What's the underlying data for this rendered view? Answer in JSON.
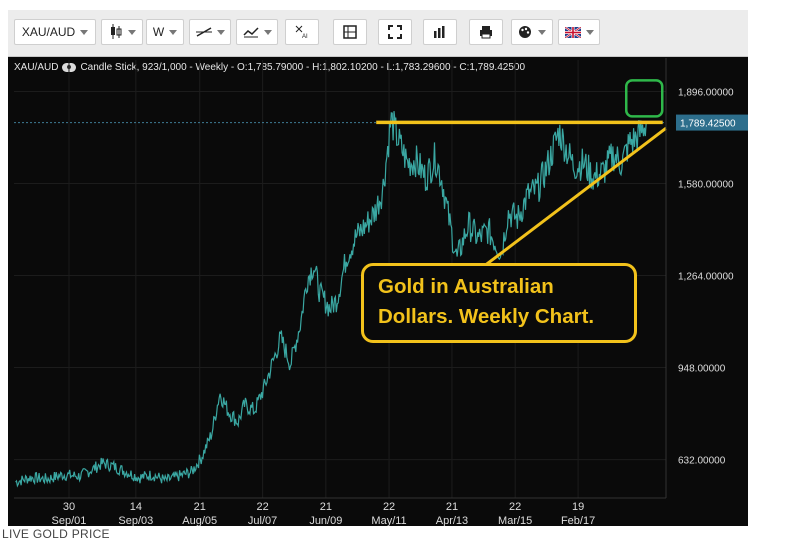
{
  "toolbar": {
    "symbol": "XAU/AUD",
    "interval": "W",
    "icons": [
      "candlestick-chart-icon",
      "draw-line-icon",
      "indicator-icon",
      "ai-tools-icon",
      "layout-icon",
      "fullscreen-icon",
      "bar-chart-icon",
      "print-icon",
      "palette-icon",
      "uk-flag-icon"
    ]
  },
  "info": {
    "symbol": "XAU/AUD",
    "details": "Candle Stick, 923/1,000 - Weekly - O:1,785.79000 - H:1,802.10200 - L:1,783.29600 - C:1,789.42500"
  },
  "last_price": "1,789.42500",
  "annotation": {
    "line1": "Gold in Australian",
    "line2": "Dollars.  Weekly Chart."
  },
  "caption": "LIVE GOLD PRICE",
  "colors": {
    "background": "#0a0a0a",
    "candles": "#3aa7a2",
    "annotation": "#f2c21b",
    "highlight_box": "#2fb84a",
    "price_tag": "#2d6e8c"
  },
  "chart_data": {
    "type": "line",
    "title": "",
    "xlabel": "",
    "ylabel": "",
    "x_ticks": [
      {
        "day": "30",
        "label": "Sep/01",
        "year": 2001.67
      },
      {
        "day": "14",
        "label": "Sep/03",
        "year": 2003.7
      },
      {
        "day": "21",
        "label": "Aug/05",
        "year": 2005.64
      },
      {
        "day": "22",
        "label": "Jul/07",
        "year": 2007.55
      },
      {
        "day": "21",
        "label": "Jun/09",
        "year": 2009.47
      },
      {
        "day": "22",
        "label": "May/11",
        "year": 2011.39
      },
      {
        "day": "21",
        "label": "Apr/13",
        "year": 2013.3
      },
      {
        "day": "22",
        "label": "Mar/15",
        "year": 2015.22
      },
      {
        "day": "19",
        "label": "Feb/17",
        "year": 2017.13
      }
    ],
    "y_ticks": [
      "1,896.00000",
      "1,580.00000",
      "1,264.00000",
      "948.00000",
      "632.00000"
    ],
    "y_tick_values": [
      1896,
      1580,
      1264,
      948,
      632
    ],
    "series": [
      {
        "points": [
          [
            2000.05,
            555
          ],
          [
            2000.5,
            570
          ],
          [
            2001.0,
            565
          ],
          [
            2001.5,
            580
          ],
          [
            2002.0,
            575
          ],
          [
            2002.4,
            600
          ],
          [
            2002.7,
            620
          ],
          [
            2003.0,
            610
          ],
          [
            2003.4,
            590
          ],
          [
            2003.8,
            570
          ],
          [
            2004.2,
            580
          ],
          [
            2004.6,
            560
          ],
          [
            2005.0,
            575
          ],
          [
            2005.4,
            590
          ],
          [
            2005.7,
            640
          ],
          [
            2006.0,
            720
          ],
          [
            2006.25,
            860
          ],
          [
            2006.5,
            800
          ],
          [
            2006.8,
            760
          ],
          [
            2007.0,
            820
          ],
          [
            2007.3,
            800
          ],
          [
            2007.6,
            880
          ],
          [
            2007.9,
            980
          ],
          [
            2008.1,
            1050
          ],
          [
            2008.4,
            960
          ],
          [
            2008.7,
            1100
          ],
          [
            2008.9,
            1250
          ],
          [
            2009.1,
            1300
          ],
          [
            2009.3,
            1200
          ],
          [
            2009.6,
            1150
          ],
          [
            2009.8,
            1180
          ],
          [
            2010.1,
            1330
          ],
          [
            2010.4,
            1400
          ],
          [
            2010.7,
            1440
          ],
          [
            2010.95,
            1480
          ],
          [
            2011.2,
            1560
          ],
          [
            2011.45,
            1800
          ],
          [
            2011.7,
            1720
          ],
          [
            2011.95,
            1650
          ],
          [
            2012.2,
            1660
          ],
          [
            2012.5,
            1600
          ],
          [
            2012.8,
            1670
          ],
          [
            2013.0,
            1590
          ],
          [
            2013.25,
            1430
          ],
          [
            2013.45,
            1320
          ],
          [
            2013.8,
            1440
          ],
          [
            2014.1,
            1390
          ],
          [
            2014.4,
            1420
          ],
          [
            2014.8,
            1340
          ],
          [
            2015.0,
            1480
          ],
          [
            2015.3,
            1460
          ],
          [
            2015.6,
            1540
          ],
          [
            2015.9,
            1560
          ],
          [
            2016.2,
            1640
          ],
          [
            2016.55,
            1760
          ],
          [
            2016.8,
            1690
          ],
          [
            2017.0,
            1640
          ],
          [
            2017.3,
            1650
          ],
          [
            2017.6,
            1600
          ],
          [
            2017.9,
            1620
          ],
          [
            2018.2,
            1680
          ],
          [
            2018.45,
            1650
          ],
          [
            2018.7,
            1720
          ],
          [
            2018.95,
            1740
          ],
          [
            2019.2,
            1789.425
          ]
        ]
      }
    ],
    "xlim": [
      2000.0,
      2019.8
    ],
    "ylim": [
      500,
      1970
    ]
  }
}
